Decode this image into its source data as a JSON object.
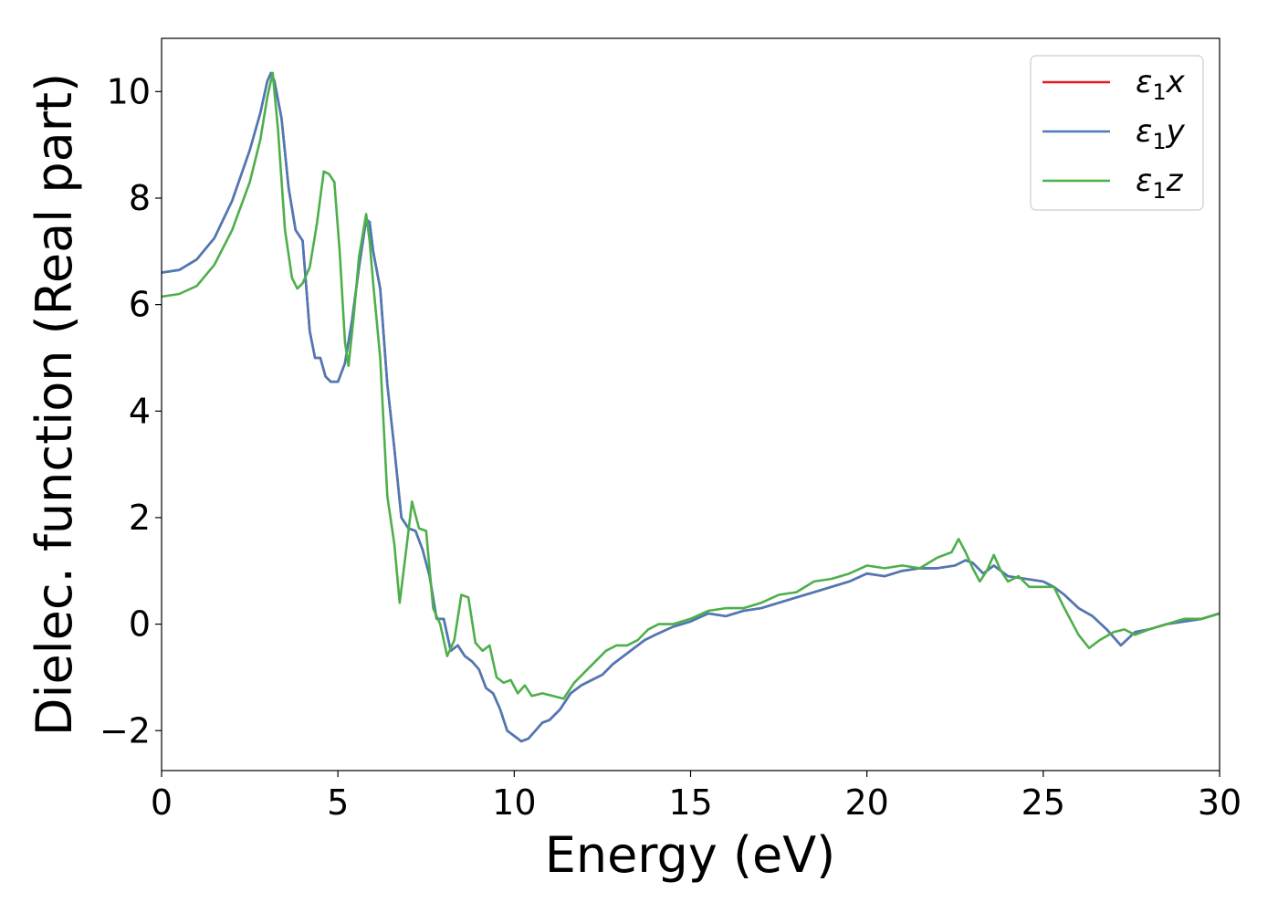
{
  "chart_data": {
    "type": "line",
    "title": "",
    "xlabel": "Energy (eV)",
    "ylabel": "Dielec. function (Real part)",
    "xlim": [
      0,
      30
    ],
    "ylim": [
      -2.75,
      11
    ],
    "xticks": [
      0,
      5,
      10,
      15,
      20,
      25,
      30
    ],
    "yticks": [
      -2,
      0,
      2,
      4,
      6,
      8,
      10
    ],
    "ytick_labels": [
      "−2",
      "0",
      "2",
      "4",
      "6",
      "8",
      "10"
    ],
    "grid": false,
    "legend_position": "top-right",
    "series": [
      {
        "name": "ε1x",
        "color": "#e41a1c",
        "x": [
          0,
          0.5,
          1,
          1.5,
          2,
          2.5,
          2.8,
          3.0,
          3.1,
          3.2,
          3.4,
          3.6,
          3.8,
          4.0,
          4.2,
          4.35,
          4.5,
          4.65,
          4.8,
          5.0,
          5.2,
          5.4,
          5.6,
          5.8,
          5.9,
          6.0,
          6.2,
          6.4,
          6.6,
          6.8,
          7.0,
          7.2,
          7.4,
          7.6,
          7.8,
          8.0,
          8.2,
          8.4,
          8.6,
          8.8,
          9.0,
          9.2,
          9.4,
          9.6,
          9.8,
          10.0,
          10.2,
          10.4,
          10.6,
          10.8,
          11.0,
          11.3,
          11.6,
          11.9,
          12.2,
          12.5,
          12.8,
          13.1,
          13.4,
          13.7,
          14.0,
          14.5,
          15.0,
          15.5,
          16.0,
          16.5,
          17.0,
          17.5,
          18.0,
          18.5,
          19.0,
          19.5,
          20.0,
          20.5,
          21.0,
          21.5,
          22.0,
          22.5,
          22.8,
          23.0,
          23.3,
          23.6,
          24.0,
          24.5,
          25.0,
          25.3,
          25.6,
          26.0,
          26.4,
          26.8,
          27.2,
          27.6,
          28.0,
          28.5,
          29.0,
          29.5,
          30.0
        ],
        "values": [
          6.6,
          6.65,
          6.85,
          7.25,
          7.95,
          8.9,
          9.6,
          10.2,
          10.35,
          10.2,
          9.5,
          8.2,
          7.4,
          7.2,
          5.5,
          5.0,
          5.0,
          4.65,
          4.55,
          4.55,
          4.9,
          5.7,
          6.7,
          7.6,
          7.55,
          7.0,
          6.3,
          4.5,
          3.3,
          2.0,
          1.8,
          1.75,
          1.4,
          0.9,
          0.1,
          0.1,
          -0.5,
          -0.4,
          -0.6,
          -0.7,
          -0.85,
          -1.2,
          -1.3,
          -1.6,
          -2.0,
          -2.1,
          -2.2,
          -2.15,
          -2.0,
          -1.85,
          -1.8,
          -1.6,
          -1.3,
          -1.15,
          -1.05,
          -0.95,
          -0.75,
          -0.6,
          -0.45,
          -0.3,
          -0.2,
          -0.05,
          0.05,
          0.2,
          0.15,
          0.25,
          0.3,
          0.4,
          0.5,
          0.6,
          0.7,
          0.8,
          0.95,
          0.9,
          1.0,
          1.05,
          1.05,
          1.1,
          1.2,
          1.15,
          0.95,
          1.1,
          0.9,
          0.85,
          0.8,
          0.7,
          0.55,
          0.3,
          0.15,
          -0.1,
          -0.4,
          -0.15,
          -0.1,
          0.0,
          0.05,
          0.1,
          0.2
        ]
      },
      {
        "name": "ε1y",
        "color": "#4a7ab8",
        "x": [
          0,
          0.5,
          1,
          1.5,
          2,
          2.5,
          2.8,
          3.0,
          3.1,
          3.2,
          3.4,
          3.6,
          3.8,
          4.0,
          4.2,
          4.35,
          4.5,
          4.65,
          4.8,
          5.0,
          5.2,
          5.4,
          5.6,
          5.8,
          5.9,
          6.0,
          6.2,
          6.4,
          6.6,
          6.8,
          7.0,
          7.2,
          7.4,
          7.6,
          7.8,
          8.0,
          8.2,
          8.4,
          8.6,
          8.8,
          9.0,
          9.2,
          9.4,
          9.6,
          9.8,
          10.0,
          10.2,
          10.4,
          10.6,
          10.8,
          11.0,
          11.3,
          11.6,
          11.9,
          12.2,
          12.5,
          12.8,
          13.1,
          13.4,
          13.7,
          14.0,
          14.5,
          15.0,
          15.5,
          16.0,
          16.5,
          17.0,
          17.5,
          18.0,
          18.5,
          19.0,
          19.5,
          20.0,
          20.5,
          21.0,
          21.5,
          22.0,
          22.5,
          22.8,
          23.0,
          23.3,
          23.6,
          24.0,
          24.5,
          25.0,
          25.3,
          25.6,
          26.0,
          26.4,
          26.8,
          27.2,
          27.6,
          28.0,
          28.5,
          29.0,
          29.5,
          30.0
        ],
        "values": [
          6.6,
          6.65,
          6.85,
          7.25,
          7.95,
          8.9,
          9.6,
          10.2,
          10.35,
          10.2,
          9.5,
          8.2,
          7.4,
          7.2,
          5.5,
          5.0,
          5.0,
          4.65,
          4.55,
          4.55,
          4.9,
          5.7,
          6.7,
          7.6,
          7.55,
          7.0,
          6.3,
          4.5,
          3.3,
          2.0,
          1.8,
          1.75,
          1.4,
          0.9,
          0.1,
          0.1,
          -0.5,
          -0.4,
          -0.6,
          -0.7,
          -0.85,
          -1.2,
          -1.3,
          -1.6,
          -2.0,
          -2.1,
          -2.2,
          -2.15,
          -2.0,
          -1.85,
          -1.8,
          -1.6,
          -1.3,
          -1.15,
          -1.05,
          -0.95,
          -0.75,
          -0.6,
          -0.45,
          -0.3,
          -0.2,
          -0.05,
          0.05,
          0.2,
          0.15,
          0.25,
          0.3,
          0.4,
          0.5,
          0.6,
          0.7,
          0.8,
          0.95,
          0.9,
          1.0,
          1.05,
          1.05,
          1.1,
          1.2,
          1.15,
          0.95,
          1.1,
          0.9,
          0.85,
          0.8,
          0.7,
          0.55,
          0.3,
          0.15,
          -0.1,
          -0.4,
          -0.15,
          -0.1,
          0.0,
          0.05,
          0.1,
          0.2
        ]
      },
      {
        "name": "ε1z",
        "color": "#4daf4a",
        "x": [
          0,
          0.5,
          1,
          1.5,
          2,
          2.5,
          2.8,
          3.0,
          3.15,
          3.3,
          3.5,
          3.7,
          3.85,
          4.0,
          4.2,
          4.4,
          4.6,
          4.75,
          4.9,
          5.05,
          5.2,
          5.3,
          5.45,
          5.6,
          5.8,
          5.9,
          6.0,
          6.2,
          6.4,
          6.6,
          6.75,
          6.9,
          7.1,
          7.3,
          7.5,
          7.7,
          7.9,
          8.1,
          8.3,
          8.5,
          8.7,
          8.9,
          9.1,
          9.3,
          9.5,
          9.7,
          9.9,
          10.1,
          10.3,
          10.5,
          10.8,
          11.1,
          11.4,
          11.7,
          12.0,
          12.3,
          12.6,
          12.9,
          13.2,
          13.5,
          13.8,
          14.1,
          14.5,
          15.0,
          15.5,
          16.0,
          16.5,
          17.0,
          17.5,
          18.0,
          18.5,
          19.0,
          19.5,
          20.0,
          20.5,
          21.0,
          21.5,
          22.0,
          22.4,
          22.6,
          22.8,
          23.0,
          23.2,
          23.4,
          23.6,
          23.8,
          24.0,
          24.3,
          24.6,
          25.0,
          25.3,
          25.6,
          26.0,
          26.3,
          26.6,
          27.0,
          27.3,
          27.6,
          28.0,
          28.5,
          29.0,
          29.5,
          30.0
        ],
        "values": [
          6.15,
          6.2,
          6.35,
          6.75,
          7.4,
          8.3,
          9.1,
          9.9,
          10.35,
          9.3,
          7.4,
          6.5,
          6.3,
          6.4,
          6.7,
          7.5,
          8.5,
          8.45,
          8.3,
          7.0,
          5.3,
          4.85,
          5.8,
          6.9,
          7.7,
          7.2,
          6.4,
          5.0,
          2.4,
          1.5,
          0.4,
          1.2,
          2.3,
          1.8,
          1.75,
          0.3,
          0.0,
          -0.6,
          -0.3,
          0.55,
          0.5,
          -0.35,
          -0.5,
          -0.4,
          -1.0,
          -1.1,
          -1.05,
          -1.3,
          -1.15,
          -1.35,
          -1.3,
          -1.35,
          -1.4,
          -1.1,
          -0.9,
          -0.7,
          -0.5,
          -0.4,
          -0.4,
          -0.3,
          -0.1,
          0.0,
          0.0,
          0.1,
          0.25,
          0.3,
          0.3,
          0.4,
          0.55,
          0.6,
          0.8,
          0.85,
          0.95,
          1.1,
          1.05,
          1.1,
          1.05,
          1.25,
          1.35,
          1.6,
          1.35,
          1.05,
          0.8,
          1.0,
          1.3,
          1.0,
          0.8,
          0.9,
          0.7,
          0.7,
          0.7,
          0.3,
          -0.2,
          -0.45,
          -0.3,
          -0.15,
          -0.1,
          -0.2,
          -0.1,
          0.0,
          0.1,
          0.1,
          0.2
        ]
      }
    ]
  }
}
